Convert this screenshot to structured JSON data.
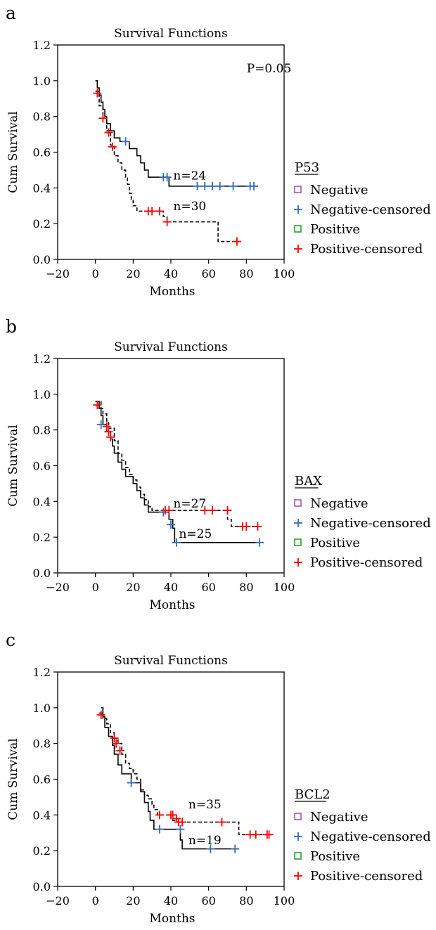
{
  "chart_data": [
    {
      "panel": "a",
      "type": "line",
      "title": "Survival Functions",
      "xlabel": "Months",
      "ylabel": "Cum Survival",
      "xlim": [
        -20,
        100
      ],
      "ylim": [
        0.0,
        1.2
      ],
      "xticks": [
        -20,
        0,
        20,
        40,
        60,
        80,
        100
      ],
      "xtick_labels": [
        "−20",
        "0",
        "20",
        "40",
        "60",
        "80",
        "100"
      ],
      "yticks": [
        0.0,
        0.2,
        0.4,
        0.6,
        0.8,
        1.0,
        1.2
      ],
      "ytick_labels": [
        "0.0",
        "0.2",
        "0.4",
        "0.6",
        "0.8",
        "1.0",
        "1.2"
      ],
      "annotations": [
        {
          "text": "P=0.05",
          "x": 92,
          "y": 1.07
        },
        {
          "text": "n=24",
          "x": 50,
          "y": 0.47
        },
        {
          "text": "n=30",
          "x": 50,
          "y": 0.3
        }
      ],
      "legend": {
        "title": "P53",
        "position": "right",
        "entries": [
          {
            "label": "Negative",
            "marker": "square",
            "color": "#9b59b6"
          },
          {
            "label": "Negative-censored",
            "marker": "plus",
            "color": "#2e6db4"
          },
          {
            "label": "Positive",
            "marker": "square",
            "color": "#2ca02c"
          },
          {
            "label": "Positive-censored",
            "marker": "plus",
            "color": "#ff0000"
          }
        ]
      },
      "series": [
        {
          "group": "Negative",
          "style": "solid",
          "color": "#000000",
          "censor_color": "#2e6db4",
          "steps": [
            [
              0,
              1.0
            ],
            [
              1,
              0.96
            ],
            [
              2,
              0.92
            ],
            [
              3,
              0.88
            ],
            [
              4,
              0.84
            ],
            [
              5,
              0.8
            ],
            [
              6,
              0.76
            ],
            [
              8,
              0.72
            ],
            [
              10,
              0.68
            ],
            [
              13,
              0.66
            ],
            [
              18,
              0.62
            ],
            [
              22,
              0.58
            ],
            [
              24,
              0.54
            ],
            [
              26,
              0.5
            ],
            [
              28,
              0.46
            ],
            [
              39,
              0.41
            ],
            [
              86,
              0.41
            ]
          ],
          "censored": [
            [
              16,
              0.66
            ],
            [
              36,
              0.46
            ],
            [
              38,
              0.46
            ],
            [
              54,
              0.41
            ],
            [
              58,
              0.41
            ],
            [
              62,
              0.41
            ],
            [
              66,
              0.41
            ],
            [
              73,
              0.41
            ],
            [
              82,
              0.41
            ],
            [
              84,
              0.41
            ]
          ]
        },
        {
          "group": "Positive",
          "style": "dashed",
          "color": "#000000",
          "censor_color": "#ff0000",
          "steps": [
            [
              0,
              0.94
            ],
            [
              2,
              0.86
            ],
            [
              4,
              0.79
            ],
            [
              6,
              0.72
            ],
            [
              8,
              0.64
            ],
            [
              10,
              0.58
            ],
            [
              12,
              0.54
            ],
            [
              14,
              0.5
            ],
            [
              16,
              0.46
            ],
            [
              17,
              0.42
            ],
            [
              18,
              0.37
            ],
            [
              19,
              0.33
            ],
            [
              20,
              0.3
            ],
            [
              22,
              0.27
            ],
            [
              36,
              0.24
            ],
            [
              38,
              0.21
            ],
            [
              65,
              0.1
            ],
            [
              75,
              0.1
            ]
          ],
          "censored": [
            [
              1,
              0.93
            ],
            [
              4,
              0.79
            ],
            [
              7,
              0.71
            ],
            [
              9,
              0.63
            ],
            [
              28,
              0.27
            ],
            [
              30,
              0.27
            ],
            [
              34,
              0.27
            ],
            [
              38,
              0.21
            ],
            [
              75,
              0.1
            ]
          ]
        }
      ]
    },
    {
      "panel": "b",
      "type": "line",
      "title": "Survival Functions",
      "xlabel": "Months",
      "ylabel": "Cum Survival",
      "xlim": [
        -20,
        100
      ],
      "ylim": [
        0.0,
        1.2
      ],
      "xticks": [
        -20,
        0,
        20,
        40,
        60,
        80,
        100
      ],
      "xtick_labels": [
        "−20",
        "0",
        "20",
        "40",
        "60",
        "80",
        "100"
      ],
      "yticks": [
        0.0,
        0.2,
        0.4,
        0.6,
        0.8,
        1.0,
        1.2
      ],
      "ytick_labels": [
        "0.0",
        "0.2",
        "0.4",
        "0.6",
        "0.8",
        "1.0",
        "1.2"
      ],
      "annotations": [
        {
          "text": "n=27",
          "x": 50,
          "y": 0.39
        },
        {
          "text": "n=25",
          "x": 53,
          "y": 0.22
        }
      ],
      "legend": {
        "title": "BAX",
        "position": "right",
        "entries": [
          {
            "label": "Negative",
            "marker": "square",
            "color": "#9b59b6"
          },
          {
            "label": "Negative-censored",
            "marker": "plus",
            "color": "#2e6db4"
          },
          {
            "label": "Positive",
            "marker": "square",
            "color": "#2ca02c"
          },
          {
            "label": "Positive-censored",
            "marker": "plus",
            "color": "#ff0000"
          }
        ]
      },
      "series": [
        {
          "group": "Negative",
          "style": "solid",
          "color": "#000000",
          "censor_color": "#2e6db4",
          "steps": [
            [
              0,
              0.96
            ],
            [
              2,
              0.92
            ],
            [
              3,
              0.88
            ],
            [
              4,
              0.83
            ],
            [
              6,
              0.79
            ],
            [
              8,
              0.75
            ],
            [
              9,
              0.71
            ],
            [
              10,
              0.67
            ],
            [
              12,
              0.62
            ],
            [
              14,
              0.58
            ],
            [
              16,
              0.54
            ],
            [
              20,
              0.5
            ],
            [
              22,
              0.46
            ],
            [
              24,
              0.42
            ],
            [
              26,
              0.38
            ],
            [
              28,
              0.34
            ],
            [
              39,
              0.3
            ],
            [
              41,
              0.25
            ],
            [
              42,
              0.17
            ],
            [
              88,
              0.17
            ]
          ],
          "censored": [
            [
              3,
              0.83
            ],
            [
              36,
              0.34
            ],
            [
              40,
              0.27
            ],
            [
              43,
              0.17
            ],
            [
              87,
              0.17
            ]
          ]
        },
        {
          "group": "Positive",
          "style": "dashed",
          "color": "#000000",
          "censor_color": "#ff0000",
          "steps": [
            [
              0,
              0.96
            ],
            [
              3,
              0.92
            ],
            [
              4,
              0.89
            ],
            [
              6,
              0.85
            ],
            [
              7,
              0.81
            ],
            [
              10,
              0.74
            ],
            [
              12,
              0.67
            ],
            [
              14,
              0.63
            ],
            [
              16,
              0.59
            ],
            [
              18,
              0.55
            ],
            [
              20,
              0.52
            ],
            [
              22,
              0.48
            ],
            [
              24,
              0.44
            ],
            [
              26,
              0.41
            ],
            [
              28,
              0.37
            ],
            [
              30,
              0.35
            ],
            [
              68,
              0.35
            ],
            [
              70,
              0.3
            ],
            [
              72,
              0.26
            ],
            [
              87,
              0.26
            ]
          ],
          "censored": [
            [
              1,
              0.94
            ],
            [
              6,
              0.82
            ],
            [
              7,
              0.79
            ],
            [
              8,
              0.76
            ],
            [
              37,
              0.35
            ],
            [
              39,
              0.35
            ],
            [
              58,
              0.35
            ],
            [
              62,
              0.35
            ],
            [
              70,
              0.35
            ],
            [
              78,
              0.26
            ],
            [
              80,
              0.26
            ],
            [
              86,
              0.26
            ]
          ]
        }
      ]
    },
    {
      "panel": "c",
      "type": "line",
      "title": "Survival Functions",
      "xlabel": "Months",
      "ylabel": "Cum Survival",
      "xlim": [
        -20,
        100
      ],
      "ylim": [
        0.0,
        1.2
      ],
      "xticks": [
        -20,
        0,
        20,
        40,
        60,
        80,
        100
      ],
      "xtick_labels": [
        "−20",
        "0",
        "20",
        "40",
        "60",
        "80",
        "100"
      ],
      "yticks": [
        0.0,
        0.2,
        0.4,
        0.6,
        0.8,
        1.0,
        1.2
      ],
      "ytick_labels": [
        "0.0",
        "0.2",
        "0.4",
        "0.6",
        "0.8",
        "1.0",
        "1.2"
      ],
      "annotations": [
        {
          "text": "n=35",
          "x": 58,
          "y": 0.46
        },
        {
          "text": "n=19",
          "x": 58,
          "y": 0.26
        }
      ],
      "legend": {
        "title": "BCL2",
        "position": "right",
        "entries": [
          {
            "label": "Negative",
            "marker": "square",
            "color": "#9b59b6"
          },
          {
            "label": "Negative-censored",
            "marker": "plus",
            "color": "#2e6db4"
          },
          {
            "label": "Positive",
            "marker": "square",
            "color": "#2ca02c"
          },
          {
            "label": "Positive-censored",
            "marker": "plus",
            "color": "#ff0000"
          }
        ]
      },
      "series": [
        {
          "group": "Negative",
          "style": "solid",
          "color": "#000000",
          "censor_color": "#2e6db4",
          "steps": [
            [
              3,
              1.0
            ],
            [
              4,
              0.95
            ],
            [
              5,
              0.89
            ],
            [
              7,
              0.84
            ],
            [
              9,
              0.79
            ],
            [
              10,
              0.74
            ],
            [
              12,
              0.68
            ],
            [
              14,
              0.63
            ],
            [
              19,
              0.58
            ],
            [
              24,
              0.53
            ],
            [
              26,
              0.47
            ],
            [
              28,
              0.42
            ],
            [
              29,
              0.37
            ],
            [
              31,
              0.32
            ],
            [
              45,
              0.26
            ],
            [
              46,
              0.21
            ],
            [
              76,
              0.21
            ]
          ],
          "censored": [
            [
              19,
              0.58
            ],
            [
              34,
              0.32
            ],
            [
              45,
              0.32
            ],
            [
              61,
              0.21
            ],
            [
              74,
              0.21
            ]
          ]
        },
        {
          "group": "Positive",
          "style": "dashed",
          "color": "#000000",
          "censor_color": "#ff0000",
          "steps": [
            [
              2,
              0.97
            ],
            [
              4,
              0.94
            ],
            [
              6,
              0.91
            ],
            [
              8,
              0.86
            ],
            [
              10,
              0.83
            ],
            [
              12,
              0.8
            ],
            [
              14,
              0.74
            ],
            [
              16,
              0.69
            ],
            [
              18,
              0.66
            ],
            [
              20,
              0.63
            ],
            [
              22,
              0.6
            ],
            [
              24,
              0.54
            ],
            [
              26,
              0.51
            ],
            [
              28,
              0.49
            ],
            [
              30,
              0.46
            ],
            [
              31,
              0.43
            ],
            [
              33,
              0.4
            ],
            [
              41,
              0.37
            ],
            [
              43,
              0.36
            ],
            [
              74,
              0.36
            ],
            [
              76,
              0.29
            ],
            [
              93,
              0.29
            ]
          ],
          "censored": [
            [
              3,
              0.96
            ],
            [
              10,
              0.83
            ],
            [
              11,
              0.8
            ],
            [
              13,
              0.76
            ],
            [
              34,
              0.4
            ],
            [
              40,
              0.4
            ],
            [
              41,
              0.4
            ],
            [
              43,
              0.38
            ],
            [
              44,
              0.36
            ],
            [
              46,
              0.36
            ],
            [
              67,
              0.36
            ],
            [
              82,
              0.29
            ],
            [
              85,
              0.29
            ],
            [
              91,
              0.29
            ],
            [
              92,
              0.29
            ]
          ]
        }
      ]
    }
  ]
}
